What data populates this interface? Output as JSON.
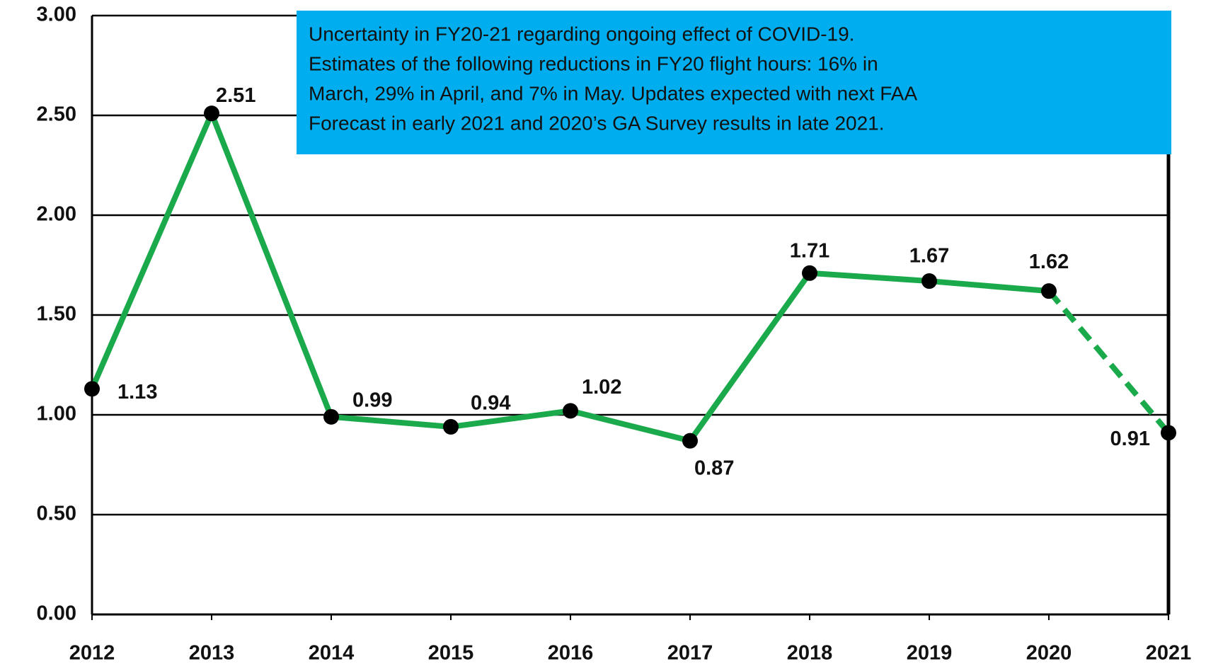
{
  "chart_data": {
    "type": "line",
    "categories": [
      "2012",
      "2013",
      "2014",
      "2015",
      "2016",
      "2017",
      "2018",
      "2019",
      "2020",
      "2021"
    ],
    "values": [
      1.13,
      2.51,
      0.99,
      0.94,
      1.02,
      0.87,
      1.71,
      1.67,
      1.62,
      0.91
    ],
    "value_labels": [
      "1.13",
      "2.51",
      "0.99",
      "0.94",
      "1.02",
      "0.87",
      "1.71",
      "1.67",
      "1.62",
      "0.91"
    ],
    "color": "#1aaa4b",
    "dashed_from_index": 8,
    "ylim": [
      0,
      3
    ],
    "yticks": [
      {
        "value": 0,
        "label": "0.00"
      },
      {
        "value": 0.5,
        "label": "0.50"
      },
      {
        "value": 1,
        "label": "1.00"
      },
      {
        "value": 1.5,
        "label": "1.50"
      },
      {
        "value": 2,
        "label": "2.00"
      },
      {
        "value": 2.5,
        "label": "2.50"
      },
      {
        "value": 3,
        "label": "3.00"
      }
    ],
    "grid": true,
    "annotation": [
      "Uncertainty in FY20-21 regarding ongoing effect of COVID-19.",
      "Estimates of the following reductions in FY20 flight hours: 16% in",
      "March, 29% in April, and 7% in May. Updates expected with next FAA",
      "Forecast in early 2021 and 2020’s GA Survey results in late 2021."
    ],
    "annotation_color": "#00aeef"
  }
}
